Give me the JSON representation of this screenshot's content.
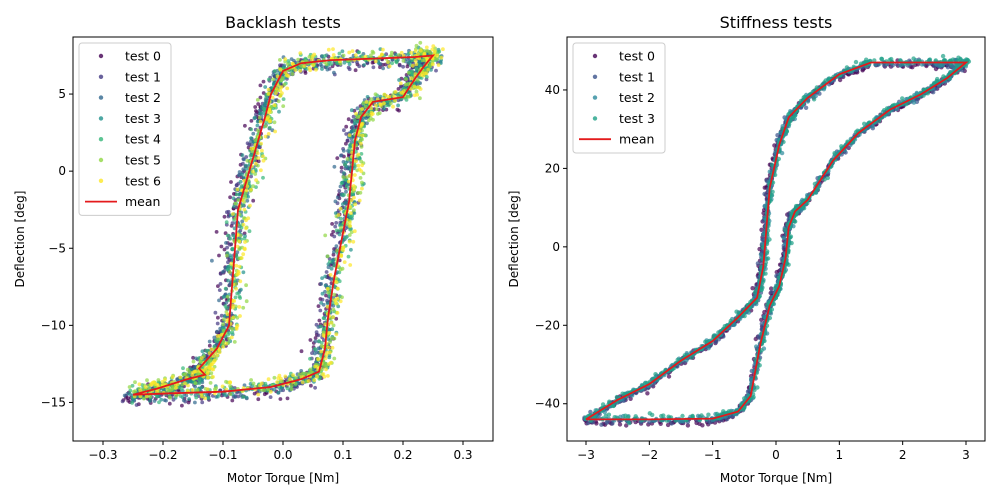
{
  "chart_data": [
    {
      "type": "scatter",
      "title": "Backlash tests",
      "xlabel": "Motor Torque [Nm]",
      "ylabel": "Deflection [deg]",
      "xlim": [
        -0.35,
        0.35
      ],
      "ylim": [
        -17.5,
        8.7
      ],
      "xticks": [
        -0.3,
        -0.2,
        -0.1,
        0.0,
        0.1,
        0.2,
        0.3
      ],
      "xtick_labels": [
        "−0.3",
        "−0.2",
        "−0.1",
        "0.0",
        "0.1",
        "0.2",
        "0.3"
      ],
      "yticks": [
        -15,
        -10,
        -5,
        0,
        5
      ],
      "ytick_labels": [
        "−15",
        "−10",
        "−5",
        "0",
        "5"
      ],
      "grid": false,
      "legend": "upper-left",
      "series": [
        {
          "name": "test 0",
          "color": "#440154",
          "kind": "scatter"
        },
        {
          "name": "test 1",
          "color": "#443983",
          "kind": "scatter"
        },
        {
          "name": "test 2",
          "color": "#31688e",
          "kind": "scatter"
        },
        {
          "name": "test 3",
          "color": "#21918c",
          "kind": "scatter"
        },
        {
          "name": "test 4",
          "color": "#35b779",
          "kind": "scatter"
        },
        {
          "name": "test 5",
          "color": "#90d743",
          "kind": "scatter"
        },
        {
          "name": "test 6",
          "color": "#fde725",
          "kind": "scatter"
        },
        {
          "name": "mean",
          "color": "#e41a1c",
          "kind": "line"
        }
      ],
      "mean_curve": [
        [
          -0.25,
          -14.5
        ],
        [
          -0.18,
          -14.4
        ],
        [
          -0.1,
          -14.3
        ],
        [
          -0.02,
          -14.0
        ],
        [
          0.03,
          -13.5
        ],
        [
          0.06,
          -13.0
        ],
        [
          0.07,
          -11.5
        ],
        [
          0.075,
          -9.5
        ],
        [
          0.085,
          -7.0
        ],
        [
          0.1,
          -4.0
        ],
        [
          0.11,
          -2.0
        ],
        [
          0.115,
          0.0
        ],
        [
          0.12,
          2.0
        ],
        [
          0.13,
          3.5
        ],
        [
          0.15,
          4.5
        ],
        [
          0.2,
          4.8
        ],
        [
          0.22,
          6.0
        ],
        [
          0.235,
          6.8
        ],
        [
          0.25,
          7.5
        ],
        [
          0.22,
          7.4
        ],
        [
          0.15,
          7.3
        ],
        [
          0.08,
          7.2
        ],
        [
          0.03,
          7.0
        ],
        [
          0.0,
          6.5
        ],
        [
          -0.02,
          5.0
        ],
        [
          -0.03,
          3.5
        ],
        [
          -0.045,
          1.5
        ],
        [
          -0.06,
          -0.5
        ],
        [
          -0.075,
          -2.5
        ],
        [
          -0.08,
          -5.0
        ],
        [
          -0.085,
          -7.5
        ],
        [
          -0.09,
          -10.0
        ],
        [
          -0.11,
          -11.5
        ],
        [
          -0.14,
          -12.8
        ],
        [
          -0.13,
          -13.2
        ],
        [
          -0.16,
          -13.5
        ],
        [
          -0.21,
          -14.1
        ],
        [
          -0.25,
          -14.5
        ]
      ]
    },
    {
      "type": "scatter",
      "title": "Stiffness tests",
      "xlabel": "Motor Torque [Nm]",
      "ylabel": "Deflection [deg]",
      "xlim": [
        -3.3,
        3.3
      ],
      "ylim": [
        -49.5,
        53.5
      ],
      "xticks": [
        -3,
        -2,
        -1,
        0,
        1,
        2,
        3
      ],
      "xtick_labels": [
        "−3",
        "−2",
        "−1",
        "0",
        "1",
        "2",
        "3"
      ],
      "yticks": [
        -40,
        -20,
        0,
        20,
        40
      ],
      "ytick_labels": [
        "−40",
        "−20",
        "0",
        "20",
        "40"
      ],
      "grid": false,
      "legend": "upper-left",
      "series": [
        {
          "name": "test 0",
          "color": "#440154",
          "kind": "scatter"
        },
        {
          "name": "test 1",
          "color": "#3b528b",
          "kind": "scatter"
        },
        {
          "name": "test 2",
          "color": "#2c8a9c",
          "kind": "scatter"
        },
        {
          "name": "test 3",
          "color": "#1fa187",
          "kind": "scatter"
        },
        {
          "name": "mean",
          "color": "#e41a1c",
          "kind": "line"
        }
      ],
      "mean_curve": [
        [
          -3.0,
          -44.0
        ],
        [
          -2.0,
          -44.0
        ],
        [
          -1.0,
          -43.8
        ],
        [
          -0.6,
          -42.0
        ],
        [
          -0.4,
          -38.0
        ],
        [
          -0.25,
          -25.0
        ],
        [
          -0.1,
          -15.0
        ],
        [
          0.05,
          -10.0
        ],
        [
          0.15,
          -3.0
        ],
        [
          0.2,
          5.0
        ],
        [
          0.3,
          9.0
        ],
        [
          0.5,
          12.0
        ],
        [
          0.9,
          22.0
        ],
        [
          1.3,
          29.0
        ],
        [
          1.8,
          35.0
        ],
        [
          2.3,
          39.0
        ],
        [
          2.7,
          43.0
        ],
        [
          3.0,
          47.0
        ],
        [
          2.5,
          47.0
        ],
        [
          1.5,
          47.0
        ],
        [
          1.0,
          44.0
        ],
        [
          0.5,
          38.0
        ],
        [
          0.2,
          33.0
        ],
        [
          0.05,
          26.0
        ],
        [
          -0.1,
          15.0
        ],
        [
          -0.15,
          5.0
        ],
        [
          -0.2,
          -5.0
        ],
        [
          -0.3,
          -13.0
        ],
        [
          -0.6,
          -18.0
        ],
        [
          -1.0,
          -24.0
        ],
        [
          -1.5,
          -29.0
        ],
        [
          -2.0,
          -35.0
        ],
        [
          -2.5,
          -39.0
        ],
        [
          -3.0,
          -44.0
        ]
      ]
    }
  ]
}
